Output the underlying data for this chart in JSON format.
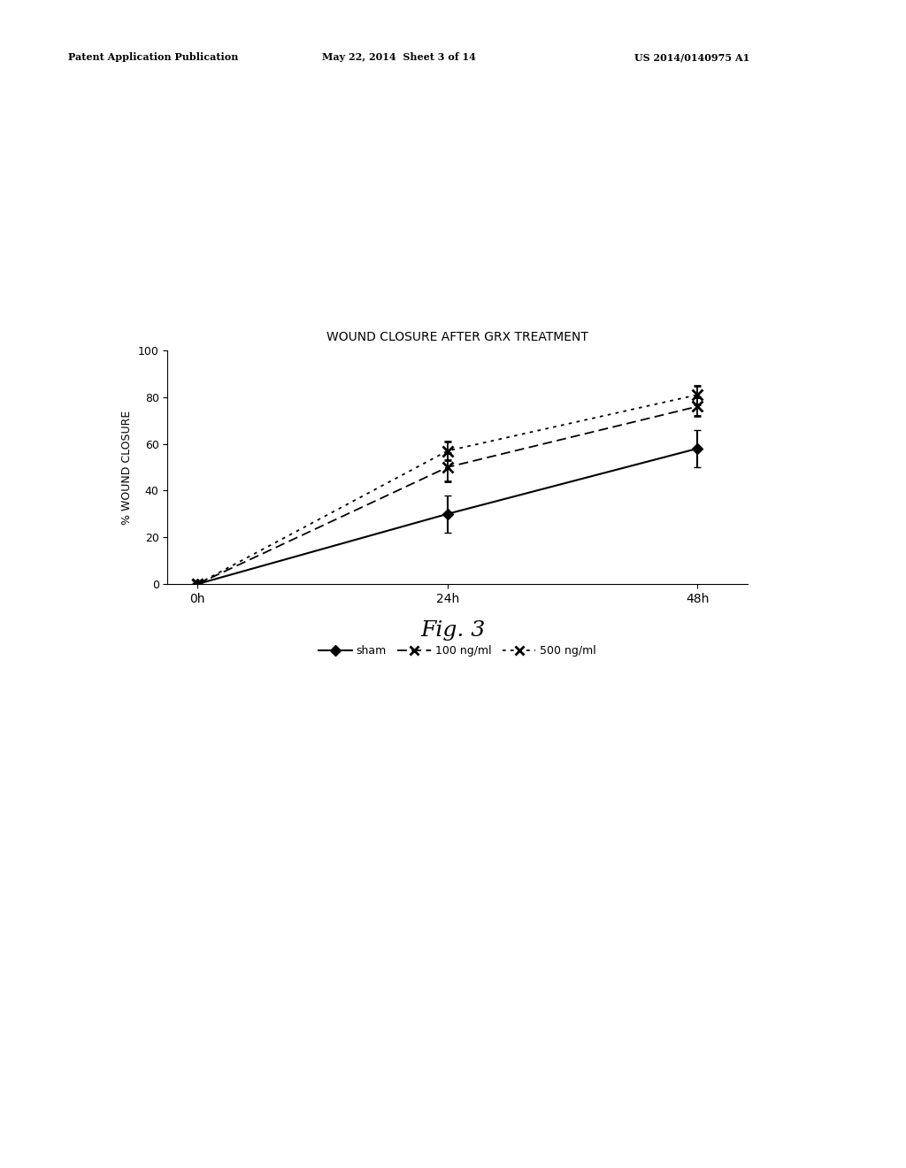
{
  "title": "WOUND CLOSURE AFTER GRX TREATMENT",
  "ylabel": "% WOUND CLOSURE",
  "x_tick_labels": [
    "0h",
    "24h",
    "48h"
  ],
  "ylim": [
    0,
    100
  ],
  "yticks": [
    0,
    20,
    40,
    60,
    80,
    100
  ],
  "series": {
    "sham": {
      "x": [
        0,
        1,
        2
      ],
      "y": [
        0,
        30,
        58
      ],
      "yerr": [
        0,
        8,
        8
      ],
      "linestyle": "solid",
      "marker": "D",
      "markersize": 6,
      "linewidth": 1.5,
      "label": "sham"
    },
    "100ng": {
      "x": [
        0,
        1,
        2
      ],
      "y": [
        0,
        50,
        76
      ],
      "yerr": [
        0,
        6,
        4
      ],
      "linestyle_dash": [
        6,
        3
      ],
      "marker": "x",
      "markersize": 9,
      "linewidth": 1.3,
      "label": "100 ng/ml"
    },
    "500ng": {
      "x": [
        0,
        1,
        2
      ],
      "y": [
        0,
        57,
        81
      ],
      "yerr": [
        0,
        4,
        4
      ],
      "linestyle_dash": [
        2,
        3
      ],
      "marker": "x",
      "markersize": 9,
      "linewidth": 1.3,
      "label": "500 ng/ml"
    }
  },
  "fig_caption": "Fig. 3",
  "patent_left": "Patent Application Publication",
  "patent_mid": "May 22, 2014  Sheet 3 of 14",
  "patent_right": "US 2014/0140975 A1",
  "background_color": "#ffffff"
}
